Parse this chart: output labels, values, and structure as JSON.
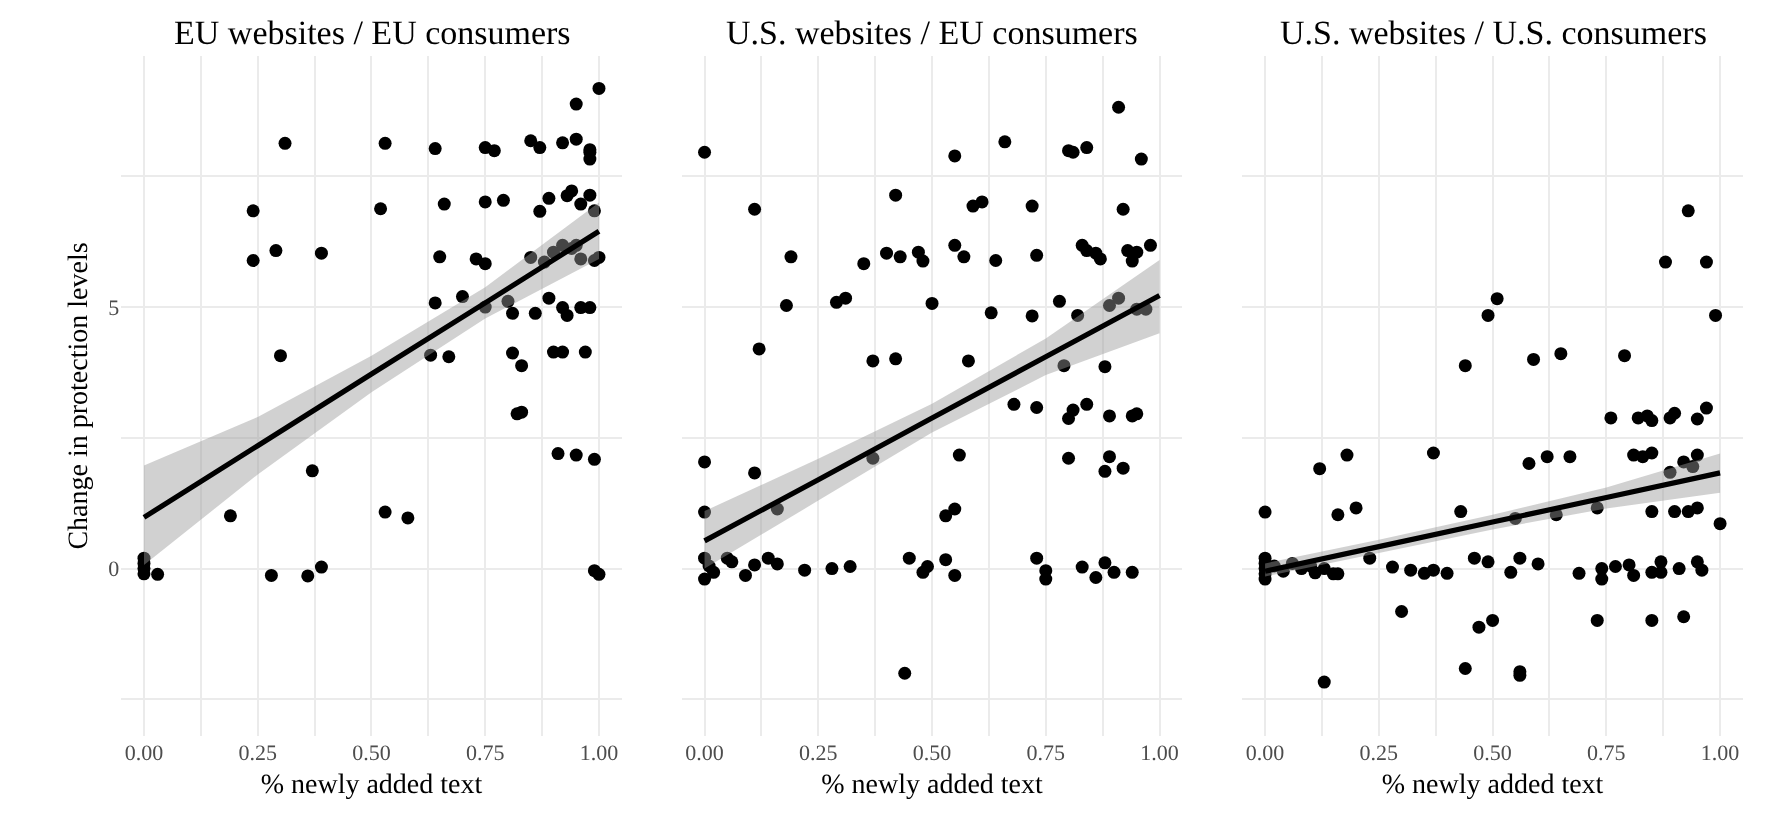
{
  "chart_data": [
    {
      "type": "scatter",
      "title": "EU websites / EU consumers",
      "xlabel": "% newly added text",
      "ylabel": "Change in protection levels",
      "xlim": [
        -0.05,
        1.05
      ],
      "ylim": [
        -3.2,
        9.8
      ],
      "xticks": [
        {
          "value": 0,
          "label": "0.00"
        },
        {
          "value": 0.125,
          "label": null
        },
        {
          "value": 0.25,
          "label": "0.25"
        },
        {
          "value": 0.375,
          "label": null
        },
        {
          "value": 0.5,
          "label": "0.50"
        },
        {
          "value": 0.625,
          "label": null
        },
        {
          "value": 0.75,
          "label": "0.75"
        },
        {
          "value": 0.875,
          "label": null
        },
        {
          "value": 1,
          "label": "1.00"
        }
      ],
      "yticks": [
        {
          "value": -2.5,
          "label": null
        },
        0,
        {
          "value": 2.5,
          "label": null
        },
        5,
        {
          "value": 7.5,
          "label": null
        }
      ],
      "grid": true,
      "series": [
        {
          "marker": "circle",
          "color": "#000000",
          "x": [
            1.0,
            0.95,
            0.31,
            0.53,
            0.64,
            0.75,
            0.77,
            0.85,
            0.87,
            0.92,
            0.95,
            0.98,
            0.98,
            0.98,
            0.24,
            0.52,
            0.66,
            0.75,
            0.79,
            0.89,
            0.93,
            0.94,
            0.96,
            0.98,
            0.87,
            0.99,
            0.24,
            0.29,
            0.39,
            0.65,
            0.73,
            0.75,
            0.85,
            0.9,
            0.92,
            0.94,
            0.95,
            0.96,
            0.99,
            1.0,
            0.88,
            0.64,
            0.7,
            0.75,
            0.8,
            0.81,
            0.86,
            0.89,
            0.92,
            0.93,
            0.96,
            0.98,
            0.3,
            0.63,
            0.67,
            0.81,
            0.83,
            0.9,
            0.92,
            0.97,
            0.82,
            0.83,
            0.91,
            0.95,
            0.99,
            0.37,
            0.19,
            0.53,
            0.58,
            0,
            0,
            0,
            0,
            0.03,
            0.28,
            0.36,
            0.39,
            0.99,
            1.0
          ],
          "values": [
            9.18,
            8.88,
            8.13,
            8.13,
            8.03,
            8.05,
            7.99,
            8.18,
            8.05,
            8.14,
            8.21,
            7.96,
            8.01,
            7.83,
            6.84,
            6.88,
            6.97,
            7.01,
            7.04,
            7.08,
            7.13,
            7.22,
            6.97,
            7.14,
            6.83,
            6.84,
            5.89,
            6.08,
            6.03,
            5.96,
            5.92,
            5.83,
            5.95,
            6.05,
            6.18,
            6.12,
            6.18,
            5.92,
            5.89,
            5.95,
            5.86,
            5.08,
            5.2,
            5.0,
            5.11,
            4.88,
            4.88,
            5.17,
            4.99,
            4.84,
            4.99,
            4.99,
            4.07,
            4.08,
            4.05,
            4.12,
            3.88,
            4.14,
            4.14,
            4.14,
            2.96,
            2.99,
            2.2,
            2.17,
            2.09,
            1.87,
            1.01,
            1.08,
            0.97,
            0.2,
            0.1,
            0,
            -0.1,
            -0.11,
            -0.13,
            -0.14,
            0.03,
            -0.04,
            -0.11
          ]
        },
        {
          "type": "line",
          "color": "#000000",
          "x": [
            0,
            0.25,
            0.5,
            0.75,
            1
          ],
          "values": [
            0.98,
            2.35,
            3.72,
            5.08,
            6.45
          ],
          "lower": [
            0.07,
            1.8,
            3.37,
            4.78,
            5.92
          ],
          "upper": [
            1.97,
            2.9,
            4.07,
            5.38,
            7.0
          ]
        }
      ]
    },
    {
      "type": "scatter",
      "title": "U.S. websites / EU consumers",
      "xlabel": "% newly added text",
      "tick_labels": "x",
      "xlim": [
        -0.05,
        1.05
      ],
      "ylim": [
        -3.2,
        9.8
      ],
      "xticks": [
        {
          "value": 0,
          "label": "0.00"
        },
        {
          "value": 0.125,
          "label": null
        },
        {
          "value": 0.25,
          "label": "0.25"
        },
        {
          "value": 0.375,
          "label": null
        },
        {
          "value": 0.5,
          "label": "0.50"
        },
        {
          "value": 0.625,
          "label": null
        },
        {
          "value": 0.75,
          "label": "0.75"
        },
        {
          "value": 0.875,
          "label": null
        },
        {
          "value": 1,
          "label": "1.00"
        }
      ],
      "yticks": [
        {
          "value": -2.5,
          "label": null
        },
        0,
        {
          "value": 2.5,
          "label": null
        },
        5,
        {
          "value": 7.5,
          "label": null
        }
      ],
      "grid": true,
      "series": [
        {
          "marker": "circle",
          "color": "#000000",
          "x": [
            0,
            0.11,
            0.42,
            0.55,
            0.66,
            0.8,
            0.81,
            0.84,
            0.91,
            0.96,
            0.59,
            0.61,
            0.72,
            0.92,
            0.19,
            0.35,
            0.4,
            0.43,
            0.47,
            0.48,
            0.55,
            0.57,
            0.64,
            0.73,
            0.83,
            0.84,
            0.86,
            0.87,
            0.93,
            0.94,
            0.95,
            0.98,
            0.18,
            0.29,
            0.31,
            0.5,
            0.63,
            0.72,
            0.78,
            0.82,
            0.89,
            0.91,
            0.95,
            0.97,
            0.12,
            0.37,
            0.42,
            0.58,
            0.79,
            0.88,
            0.68,
            0.73,
            0.8,
            0.81,
            0.84,
            0.89,
            0.94,
            0.95,
            0,
            0.11,
            0.37,
            0.56,
            0.8,
            0.89,
            0.88,
            0.92,
            0,
            0.16,
            0.53,
            0.55,
            0.02,
            0.05,
            0.06,
            0.09,
            0.11,
            0.14,
            0.16,
            0.22,
            0.28,
            0.32,
            0.45,
            0.48,
            0.49,
            0.53,
            0.55,
            0.73,
            0.75,
            0.75,
            0.83,
            0.88,
            0.86,
            0.9,
            0.94,
            0,
            0,
            0.01,
            0.44
          ],
          "values": [
            7.96,
            6.87,
            7.14,
            7.89,
            8.16,
            7.99,
            7.96,
            8.05,
            8.82,
            7.83,
            6.93,
            7.01,
            6.93,
            6.87,
            5.96,
            5.83,
            6.03,
            5.96,
            6.05,
            5.88,
            6.18,
            5.96,
            5.89,
            5.99,
            6.18,
            6.08,
            6.03,
            5.92,
            6.08,
            5.88,
            6.05,
            6.18,
            5.03,
            5.09,
            5.17,
            5.07,
            4.89,
            4.83,
            5.11,
            4.84,
            5.03,
            5.17,
            4.96,
            4.96,
            4.2,
            3.97,
            4.01,
            3.97,
            3.88,
            3.86,
            3.14,
            3.08,
            2.87,
            3.03,
            3.14,
            2.92,
            2.92,
            2.96,
            2.04,
            1.83,
            2.11,
            2.17,
            2.11,
            2.14,
            1.86,
            1.92,
            1.08,
            1.14,
            1.01,
            1.14,
            -0.07,
            0.2,
            0.13,
            -0.13,
            0.07,
            0.2,
            0.09,
            -0.03,
            0,
            0.04,
            0.2,
            -0.07,
            0.04,
            0.17,
            -0.13,
            0.2,
            -0.04,
            -0.2,
            0.03,
            0.11,
            -0.17,
            -0.07,
            -0.07,
            0.2,
            -0.2,
            0.05,
            -2.0
          ]
        },
        {
          "type": "line",
          "color": "#000000",
          "x": [
            0,
            0.25,
            0.5,
            0.75,
            1
          ],
          "values": [
            0.53,
            1.7,
            2.88,
            4.05,
            5.22
          ],
          "lower": [
            0.0,
            1.3,
            2.6,
            3.7,
            4.5
          ],
          "upper": [
            1.1,
            2.1,
            3.15,
            4.4,
            5.9
          ]
        }
      ]
    },
    {
      "type": "scatter",
      "title": "U.S. websites / U.S. consumers",
      "xlabel": "% newly added text",
      "tick_labels": "x",
      "xlim": [
        -0.05,
        1.05
      ],
      "ylim": [
        -3.2,
        9.8
      ],
      "xticks": [
        {
          "value": 0,
          "label": "0.00"
        },
        {
          "value": 0.125,
          "label": null
        },
        {
          "value": 0.25,
          "label": "0.25"
        },
        {
          "value": 0.375,
          "label": null
        },
        {
          "value": 0.5,
          "label": "0.50"
        },
        {
          "value": 0.625,
          "label": null
        },
        {
          "value": 0.75,
          "label": "0.75"
        },
        {
          "value": 0.875,
          "label": null
        },
        {
          "value": 1,
          "label": "1.00"
        }
      ],
      "yticks": [
        {
          "value": -2.5,
          "label": null
        },
        0,
        {
          "value": 2.5,
          "label": null
        },
        5,
        {
          "value": 7.5,
          "label": null
        }
      ],
      "grid": true,
      "series": [
        {
          "marker": "circle",
          "color": "#000000",
          "x": [
            0.93,
            0.88,
            0.97,
            0.99,
            0.51,
            0.49,
            0.44,
            0.59,
            0.65,
            0.79,
            0.76,
            0.82,
            0.84,
            0.85,
            0.89,
            0.9,
            0.95,
            0.97,
            0.18,
            0.37,
            0.58,
            0.62,
            0.67,
            0.81,
            0.83,
            0.85,
            0.89,
            0.92,
            0.94,
            0.95,
            0.12,
            0,
            0.16,
            0.2,
            0.43,
            0.55,
            0.64,
            0.73,
            0.93,
            0.95,
            1.0,
            0.9,
            0.85,
            0.23,
            0.28,
            0.32,
            0.35,
            0.37,
            0.4,
            0.46,
            0.49,
            0.54,
            0.56,
            0.6,
            0.69,
            0.74,
            0.74,
            0.77,
            0.8,
            0.81,
            0.85,
            0.87,
            0.91,
            0.95,
            0.96,
            0.87,
            0,
            0,
            0,
            0,
            0,
            0.02,
            0.04,
            0.06,
            0.08,
            0.1,
            0.11,
            0.13,
            0.15,
            0.16,
            0.3,
            0.47,
            0.5,
            0.44,
            0.56,
            0.56,
            0.73,
            0.85,
            0.92,
            0.13
          ],
          "values": [
            6.84,
            5.86,
            5.86,
            4.84,
            5.16,
            4.84,
            3.88,
            4.0,
            4.11,
            4.07,
            2.88,
            2.88,
            2.92,
            2.83,
            2.88,
            2.97,
            2.86,
            3.07,
            2.17,
            2.21,
            2.01,
            2.14,
            2.14,
            2.17,
            2.14,
            2.21,
            1.84,
            2.04,
            1.95,
            2.17,
            1.91,
            1.08,
            1.03,
            1.16,
            1.09,
            0.96,
            1.03,
            1.16,
            1.09,
            1.16,
            0.86,
            1.09,
            1.09,
            0.2,
            0.03,
            -0.03,
            -0.09,
            -0.03,
            -0.09,
            0.2,
            0.13,
            -0.07,
            0.2,
            0.09,
            -0.09,
            0,
            -0.2,
            0.04,
            0.07,
            -0.13,
            -0.07,
            0.13,
            0,
            0.13,
            -0.03,
            -0.07,
            0.2,
            0.1,
            0,
            -0.1,
            -0.2,
            0.05,
            -0.05,
            0.1,
            0,
            0.05,
            -0.08,
            0,
            -0.1,
            -0.1,
            -0.82,
            -1.12,
            -0.99,
            -1.91,
            -1.97,
            -2.04,
            -0.99,
            -0.99,
            -0.92,
            -2.17
          ]
        },
        {
          "type": "line",
          "color": "#000000",
          "x": [
            0,
            0.25,
            0.5,
            0.75,
            1
          ],
          "values": [
            -0.05,
            0.42,
            0.89,
            1.36,
            1.83
          ],
          "lower": [
            -0.15,
            0.3,
            0.75,
            1.15,
            1.45
          ],
          "upper": [
            0.1,
            0.55,
            1.03,
            1.55,
            2.2
          ]
        }
      ]
    }
  ]
}
